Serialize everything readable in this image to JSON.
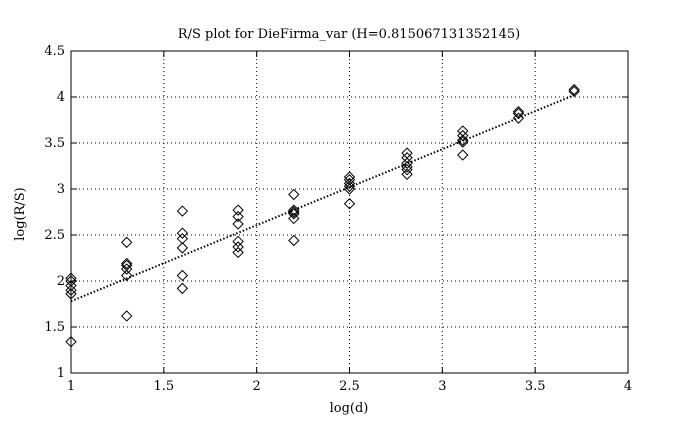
{
  "chart_data": {
    "type": "scatter",
    "title": "R/S plot for DieFirma_var (H=0.815067131352145)",
    "xlabel": "log(d)",
    "ylabel": "log(R/S)",
    "xlim": [
      1,
      4
    ],
    "ylim": [
      1,
      4.5
    ],
    "xticks": [
      "1",
      "1.5",
      "2",
      "2.5",
      "3",
      "3.5",
      "4"
    ],
    "yticks": [
      "1",
      "1.5",
      "2",
      "2.5",
      "3",
      "3.5",
      "4",
      "4.5"
    ],
    "grid": true,
    "marker": "diamond",
    "points": [
      {
        "x": 1.0,
        "y": 2.03
      },
      {
        "x": 1.0,
        "y": 2.0
      },
      {
        "x": 1.0,
        "y": 1.95
      },
      {
        "x": 1.0,
        "y": 1.9
      },
      {
        "x": 1.0,
        "y": 1.86
      },
      {
        "x": 1.0,
        "y": 1.34
      },
      {
        "x": 1.3,
        "y": 2.42
      },
      {
        "x": 1.3,
        "y": 2.19
      },
      {
        "x": 1.3,
        "y": 2.17
      },
      {
        "x": 1.3,
        "y": 2.13
      },
      {
        "x": 1.3,
        "y": 2.06
      },
      {
        "x": 1.3,
        "y": 1.62
      },
      {
        "x": 1.6,
        "y": 2.76
      },
      {
        "x": 1.6,
        "y": 2.52
      },
      {
        "x": 1.6,
        "y": 2.46
      },
      {
        "x": 1.6,
        "y": 2.36
      },
      {
        "x": 1.6,
        "y": 2.06
      },
      {
        "x": 1.6,
        "y": 1.92
      },
      {
        "x": 1.9,
        "y": 2.77
      },
      {
        "x": 1.9,
        "y": 2.7
      },
      {
        "x": 1.9,
        "y": 2.62
      },
      {
        "x": 1.9,
        "y": 2.43
      },
      {
        "x": 1.9,
        "y": 2.37
      },
      {
        "x": 1.9,
        "y": 2.31
      },
      {
        "x": 2.2,
        "y": 2.94
      },
      {
        "x": 2.2,
        "y": 2.77
      },
      {
        "x": 2.2,
        "y": 2.75
      },
      {
        "x": 2.2,
        "y": 2.73
      },
      {
        "x": 2.2,
        "y": 2.68
      },
      {
        "x": 2.2,
        "y": 2.44
      },
      {
        "x": 2.5,
        "y": 3.13
      },
      {
        "x": 2.5,
        "y": 3.1
      },
      {
        "x": 2.5,
        "y": 3.06
      },
      {
        "x": 2.5,
        "y": 3.03
      },
      {
        "x": 2.5,
        "y": 3.0
      },
      {
        "x": 2.5,
        "y": 2.84
      },
      {
        "x": 2.81,
        "y": 3.39
      },
      {
        "x": 2.81,
        "y": 3.34
      },
      {
        "x": 2.81,
        "y": 3.28
      },
      {
        "x": 2.81,
        "y": 3.24
      },
      {
        "x": 2.81,
        "y": 3.21
      },
      {
        "x": 2.81,
        "y": 3.16
      },
      {
        "x": 3.11,
        "y": 3.63
      },
      {
        "x": 3.11,
        "y": 3.58
      },
      {
        "x": 3.11,
        "y": 3.53
      },
      {
        "x": 3.11,
        "y": 3.51
      },
      {
        "x": 3.11,
        "y": 3.37
      },
      {
        "x": 3.41,
        "y": 3.84
      },
      {
        "x": 3.41,
        "y": 3.82
      },
      {
        "x": 3.41,
        "y": 3.77
      },
      {
        "x": 3.71,
        "y": 4.08
      },
      {
        "x": 3.71,
        "y": 4.06
      }
    ],
    "fit_line": {
      "style": "dotted",
      "x": [
        1.0,
        3.71
      ],
      "y": [
        1.78,
        4.02
      ]
    }
  }
}
